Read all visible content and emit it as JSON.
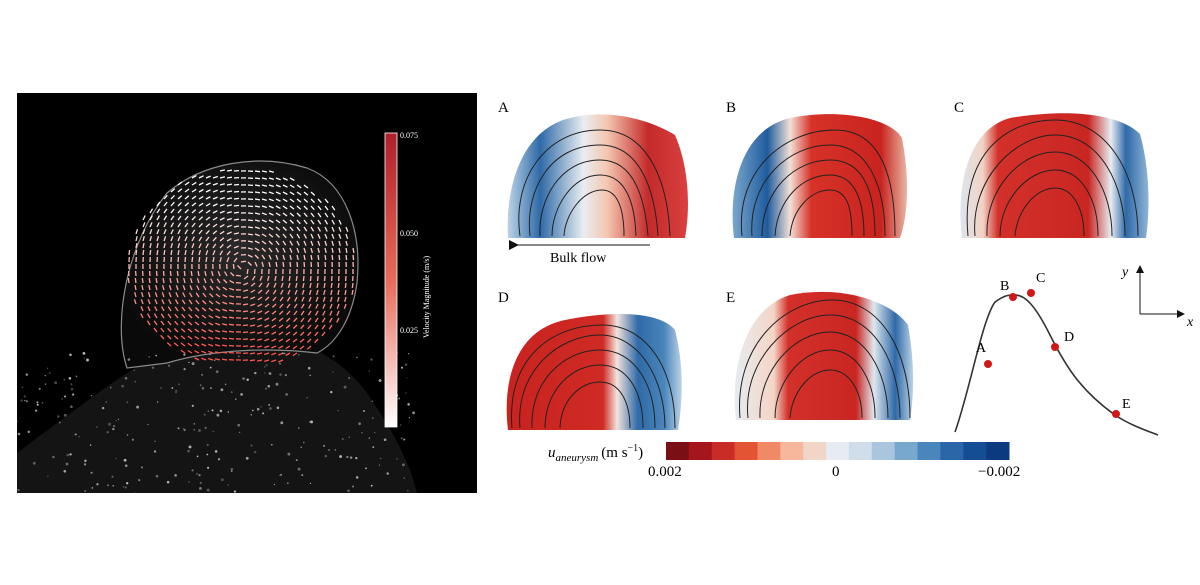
{
  "left_panel": {
    "colorbar": {
      "title": "Velocity Magnitude (m/s)",
      "ticks": [
        "0.075",
        "0.050",
        "0.025"
      ],
      "color_high": "#b01f2a",
      "color_low": "#ffffff"
    }
  },
  "right_panel": {
    "panels": [
      {
        "label": "A"
      },
      {
        "label": "B"
      },
      {
        "label": "C"
      },
      {
        "label": "D"
      },
      {
        "label": "E"
      }
    ],
    "bulk_flow_label": "Bulk flow",
    "axes": {
      "x": "x",
      "y": "y"
    },
    "waveform_points": [
      "A",
      "B",
      "C",
      "D",
      "E"
    ],
    "colorbar": {
      "label_symbol": "u",
      "label_subscript": "aneurysm",
      "label_units": "(m s",
      "label_exp": "−1",
      "label_close": ")",
      "tick_left": "0.002",
      "tick_mid": "0",
      "tick_right": "−0.002",
      "colors": [
        "#7a1015",
        "#a5151c",
        "#c92b27",
        "#e35434",
        "#f08a66",
        "#f7b79c",
        "#f1d6c8",
        "#e6ecf1",
        "#cfdeea",
        "#a9c6de",
        "#78a8ce",
        "#4a86bb",
        "#2b67a8",
        "#154d94",
        "#0b3a80"
      ]
    }
  }
}
